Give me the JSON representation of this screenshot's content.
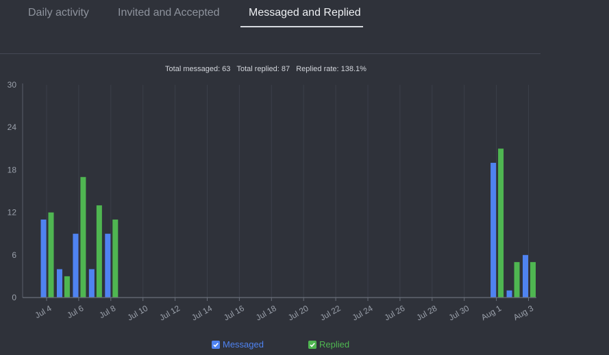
{
  "tabs": [
    "Daily activity",
    "Invited and Accepted",
    "Messaged and Replied"
  ],
  "active_tab": 2,
  "summary": {
    "messaged": "Total messaged: 63",
    "replied": "Total replied: 87",
    "rate": "Replied rate: 138.1%"
  },
  "legend": {
    "messaged": "Messaged",
    "replied": "Replied"
  },
  "colors": {
    "messaged": "#4f83f1",
    "replied": "#4fb651",
    "background": "#2f323a"
  },
  "chart_data": {
    "type": "bar",
    "title": "",
    "xlabel": "",
    "ylabel": "",
    "ylim": [
      0,
      30
    ],
    "y_ticks": [
      0,
      6,
      12,
      18,
      24,
      30
    ],
    "x_tick_labels": [
      "Jul 4",
      "Jul 6",
      "Jul 8",
      "Jul 10",
      "Jul 12",
      "Jul 14",
      "Jul 16",
      "Jul 18",
      "Jul 20",
      "Jul 22",
      "Jul 24",
      "Jul 26",
      "Jul 28",
      "Jul 30",
      "Aug 1",
      "Aug 3"
    ],
    "categories": [
      "Jul 4",
      "Jul 5",
      "Jul 6",
      "Jul 7",
      "Jul 8",
      "Jul 9",
      "Jul 10",
      "Jul 11",
      "Jul 12",
      "Jul 13",
      "Jul 14",
      "Jul 15",
      "Jul 16",
      "Jul 17",
      "Jul 18",
      "Jul 19",
      "Jul 20",
      "Jul 21",
      "Jul 22",
      "Jul 23",
      "Jul 24",
      "Jul 25",
      "Jul 26",
      "Jul 27",
      "Jul 28",
      "Jul 29",
      "Jul 30",
      "Jul 31",
      "Aug 1",
      "Aug 2",
      "Aug 3"
    ],
    "series": [
      {
        "name": "Messaged",
        "values": [
          11,
          4,
          9,
          4,
          9,
          0,
          0,
          0,
          0,
          0,
          0,
          0,
          0,
          0,
          0,
          0,
          0,
          0,
          0,
          0,
          0,
          0,
          0,
          0,
          0,
          0,
          0,
          0,
          19,
          1,
          6
        ]
      },
      {
        "name": "Replied",
        "values": [
          12,
          3,
          17,
          13,
          11,
          0,
          0,
          0,
          0,
          0,
          0,
          0,
          0,
          0,
          0,
          0,
          0,
          0,
          0,
          0,
          0,
          0,
          0,
          0,
          0,
          0,
          0,
          0,
          21,
          5,
          5
        ]
      }
    ],
    "grid": true
  }
}
